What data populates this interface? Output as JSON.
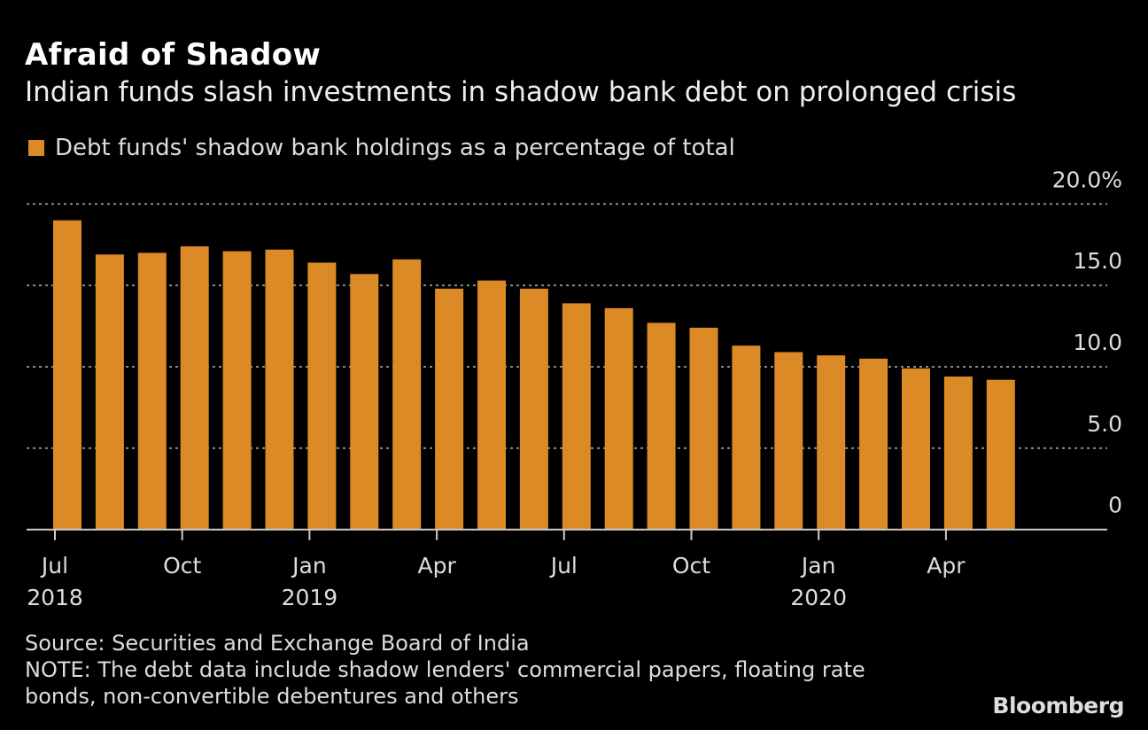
{
  "title": "Afraid of Shadow",
  "subtitle": "Indian funds slash investments in shadow bank debt on prolonged crisis",
  "source": "Source: Securities and Exchange Board of India",
  "note_line1": "NOTE: The debt data include shadow lenders' commercial papers, floating rate",
  "note_line2": "bonds, non-convertible debentures and others",
  "brand": "Bloomberg",
  "chart_data": {
    "type": "bar",
    "title": "Afraid of Shadow",
    "subtitle": "Indian funds slash investments in shadow bank debt on prolonged crisis",
    "legend": "top-left",
    "grid": true,
    "bar_color": "#db8a26",
    "series": [
      {
        "name": "Debt funds' shadow bank holdings as a percentage of total",
        "values": [
          19.0,
          16.9,
          17.0,
          17.4,
          17.1,
          17.2,
          16.4,
          15.7,
          16.6,
          14.8,
          15.3,
          14.8,
          13.9,
          13.6,
          12.7,
          12.4,
          11.3,
          10.9,
          10.7,
          10.5,
          9.9,
          9.4,
          9.2
        ]
      }
    ],
    "categories": [
      "Jul 2018",
      "Aug 2018",
      "Sep 2018",
      "Oct 2018",
      "Nov 2018",
      "Dec 2018",
      "Jan 2019",
      "Feb 2019",
      "Mar 2019",
      "Apr 2019",
      "May 2019",
      "Jun 2019",
      "Jul 2019",
      "Aug 2019",
      "Sep 2019",
      "Oct 2019",
      "Nov 2019",
      "Dec 2019",
      "Jan 2020",
      "Feb 2020",
      "Mar 2020",
      "Apr 2020",
      "May 2020"
    ],
    "ylim": [
      0,
      20
    ],
    "y_ticks": [
      {
        "value": 0,
        "label": "0"
      },
      {
        "value": 5,
        "label": "5.0"
      },
      {
        "value": 10,
        "label": "10.0"
      },
      {
        "value": 15,
        "label": "15.0"
      },
      {
        "value": 20,
        "label": "20.0%"
      }
    ],
    "x_ticks": [
      {
        "index": 0,
        "label": "Jul",
        "year": "2018"
      },
      {
        "index": 3,
        "label": "Oct",
        "year": ""
      },
      {
        "index": 6,
        "label": "Jan",
        "year": "2019"
      },
      {
        "index": 9,
        "label": "Apr",
        "year": ""
      },
      {
        "index": 12,
        "label": "Jul",
        "year": ""
      },
      {
        "index": 15,
        "label": "Oct",
        "year": ""
      },
      {
        "index": 18,
        "label": "Jan",
        "year": "2020"
      },
      {
        "index": 21,
        "label": "Apr",
        "year": ""
      }
    ],
    "y_axis_side": "right"
  }
}
